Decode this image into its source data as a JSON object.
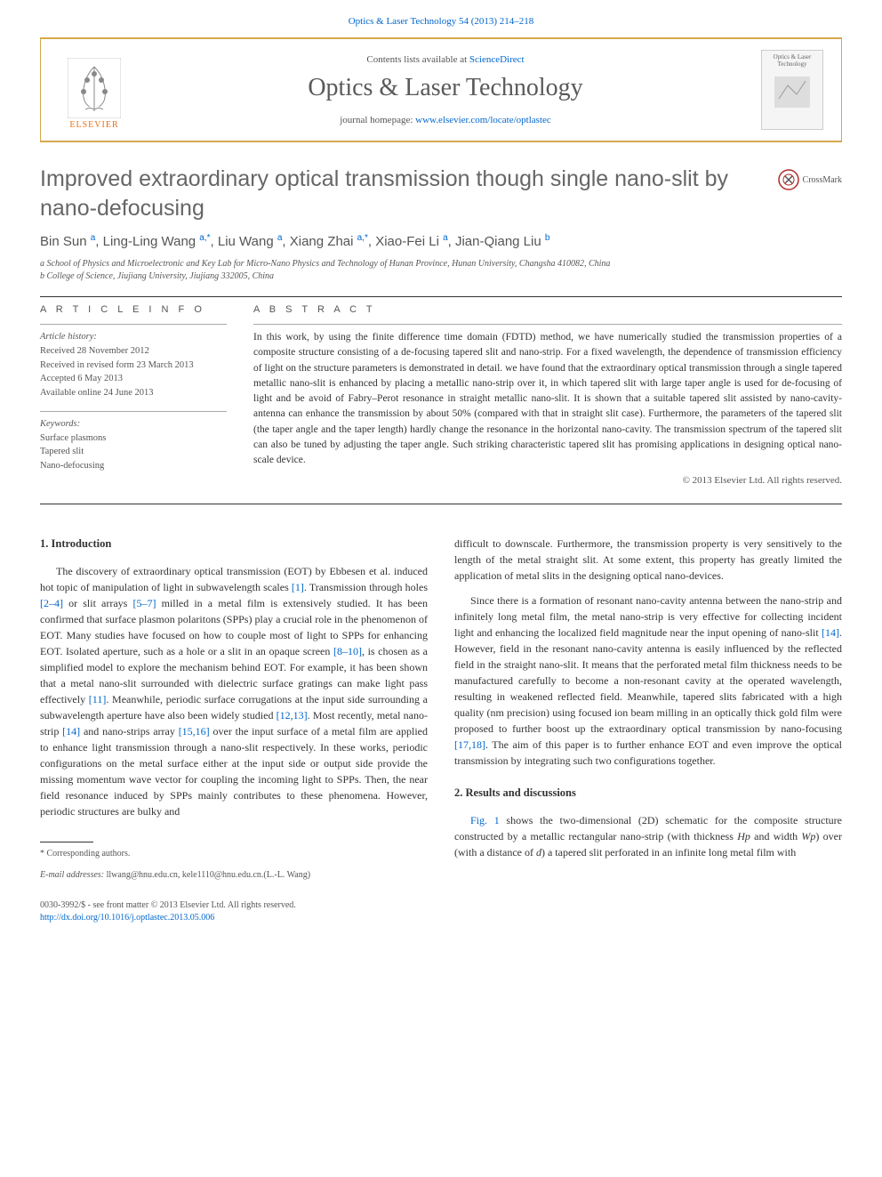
{
  "header": {
    "top_citation": "Optics & Laser Technology 54 (2013) 214–218",
    "contents_prefix": "Contents lists available at ",
    "contents_link": "ScienceDirect",
    "journal_title": "Optics & Laser Technology",
    "homepage_prefix": "journal homepage: ",
    "homepage_link": "www.elsevier.com/locate/optlastec",
    "elsevier_label": "ELSEVIER",
    "cover_text": "Optics & Laser Technology"
  },
  "crossmark": {
    "label": "CrossMark"
  },
  "article": {
    "title": "Improved extraordinary optical transmission though single nano-slit by nano-defocusing",
    "authors_html": "Bin Sun <sup>a</sup>, Ling-Ling Wang <sup>a,*</sup>, Liu Wang <sup>a</sup>, Xiang Zhai <sup>a,*</sup>, Xiao-Fei Li <sup>a</sup>, Jian-Qiang Liu <sup>b</sup>",
    "affiliations": {
      "a": "a School of Physics and Microelectronic and Key Lab for Micro-Nano Physics and Technology of Hunan Province, Hunan University, Changsha 410082, China",
      "b": "b College of Science, Jiujiang University, Jiujiang 332005, China"
    }
  },
  "info": {
    "label": "A R T I C L E  I N F O",
    "history_heading": "Article history:",
    "received": "Received 28 November 2012",
    "revised": "Received in revised form 23 March 2013",
    "accepted": "Accepted 6 May 2013",
    "online": "Available online 24 June 2013",
    "keywords_heading": "Keywords:",
    "kw1": "Surface plasmons",
    "kw2": "Tapered slit",
    "kw3": "Nano-defocusing"
  },
  "abstract": {
    "label": "A B S T R A C T",
    "text": "In this work, by using the finite difference time domain (FDTD) method, we have numerically studied the transmission properties of a composite structure consisting of a de-focusing tapered slit and nano-strip. For a fixed wavelength, the dependence of transmission efficiency of light on the structure parameters is demonstrated in detail. we have found that the extraordinary optical transmission through a single tapered metallic nano-slit is enhanced by placing a metallic nano-strip over it, in which tapered slit with large taper angle is used for de-focusing of light and be avoid of Fabry–Perot resonance in straight metallic nano-slit. It is shown that a suitable tapered slit assisted by nano-cavity-antenna can enhance the transmission by about 50% (compared with that in straight slit case). Furthermore, the parameters of the tapered slit (the taper angle and the taper length) hardly change the resonance in the horizontal nano-cavity. The transmission spectrum of the tapered slit can also be tuned by adjusting the taper angle. Such striking characteristic tapered slit has promising applications in designing optical nano-scale device.",
    "copyright": "© 2013 Elsevier Ltd. All rights reserved."
  },
  "body": {
    "section1_heading": "1.  Introduction",
    "p1": "The discovery of extraordinary optical transmission (EOT) by Ebbesen et al. induced hot topic of manipulation of light in subwavelength scales [1]. Transmission through holes [2–4] or slit arrays [5–7] milled in a metal film is extensively studied. It has been confirmed that surface plasmon polaritons (SPPs) play a crucial role in the phenomenon of EOT. Many studies have focused on how to couple most of light to SPPs for enhancing EOT. Isolated aperture, such as a hole or a slit in an opaque screen [8–10], is chosen as a simplified model to explore the mechanism behind EOT. For example, it has been shown that a metal nano-slit surrounded with dielectric surface gratings can make light pass effectively [11]. Meanwhile, periodic surface corrugations at the input side surrounding a subwavelength aperture have also been widely studied [12,13]. Most recently, metal nano-strip [14] and nano-strips array [15,16] over the input surface of a metal film are applied to enhance light transmission through a nano-slit respectively. In these works, periodic configurations on the metal surface either at the input side or output side provide the missing momentum wave vector for coupling the incoming light to SPPs. Then, the near field resonance induced by SPPs mainly contributes to these phenomena. However, periodic structures are bulky and",
    "p2": "difficult to downscale. Furthermore, the transmission property is very sensitively to the length of the metal straight slit. At some extent, this property has greatly limited the application of metal slits in the designing optical nano-devices.",
    "p3": "Since there is a formation of resonant nano-cavity antenna between the nano-strip and infinitely long metal film, the metal nano-strip is very effective for collecting incident light and enhancing the localized field magnitude near the input opening of nano-slit [14]. However, field in the resonant nano-cavity antenna is easily influenced by the reflected field in the straight nano-slit. It means that the perforated metal film thickness needs to be manufactured carefully to become a non-resonant cavity at the operated wavelength, resulting in weakened reflected field. Meanwhile, tapered slits fabricated with a high quality (nm precision) using focused ion beam milling in an optically thick gold film were proposed to further boost up the extraordinary optical transmission by nano-focusing [17,18]. The aim of this paper is to further enhance EOT and even improve the optical transmission by integrating such two configurations together.",
    "section2_heading": "2.  Results and discussions",
    "p4": "Fig. 1 shows the two-dimensional (2D) schematic for the composite structure constructed by a metallic rectangular nano-strip (with thickness Hp and width Wp) over (with a distance of d) a tapered slit perforated in an infinite long metal film with"
  },
  "footnote": {
    "corr": "* Corresponding authors.",
    "email_prefix": "E-mail addresses: ",
    "emails": "llwang@hnu.edu.cn, kele1110@hnu.edu.cn.(L.-L. Wang)"
  },
  "footer": {
    "line1": "0030-3992/$ - see front matter © 2013 Elsevier Ltd. All rights reserved.",
    "line2": "http://dx.doi.org/10.1016/j.optlastec.2013.05.006"
  },
  "colors": {
    "link": "#0066cc",
    "border": "#d4a84a",
    "elsevier": "#e8701a",
    "text": "#333333",
    "muted": "#555555"
  }
}
